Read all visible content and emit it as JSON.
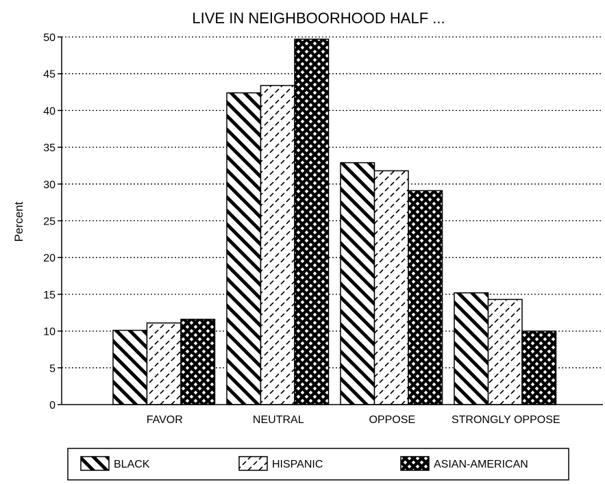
{
  "chart_data": {
    "type": "bar",
    "title": "LIVE IN NEIGHBOORHOOD HALF ...",
    "xlabel": "",
    "ylabel": "Percent",
    "ylim": [
      0,
      50
    ],
    "yticks": [
      "0",
      "5",
      "10",
      "15",
      "20",
      "25",
      "30",
      "35",
      "40",
      "45",
      "50"
    ],
    "categories": [
      "FAVOR",
      "NEUTRAL",
      "OPPOSE",
      "STRONGLY OPPOSE"
    ],
    "series": [
      {
        "name": "BLACK",
        "values": [
          10.1,
          42.4,
          32.9,
          15.2
        ],
        "pattern": "diagonal-hatch"
      },
      {
        "name": "HISPANIC",
        "values": [
          11.1,
          43.4,
          31.8,
          14.3
        ],
        "pattern": "dashed-diagonal"
      },
      {
        "name": "ASIAN-AMERICAN",
        "values": [
          11.6,
          49.7,
          29.1,
          10.0
        ],
        "pattern": "crosshatch-weave"
      }
    ],
    "grid": "horizontal-dotted",
    "legend_position": "bottom"
  }
}
